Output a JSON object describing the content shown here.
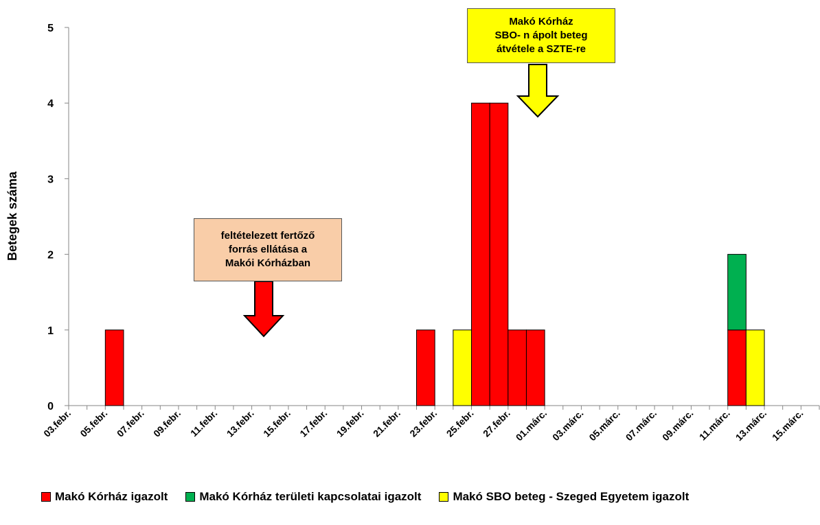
{
  "chart_data": {
    "type": "bar",
    "stacked": true,
    "ylabel": "Betegek száma",
    "xlabel": "",
    "ylim": [
      0,
      5
    ],
    "yticks": [
      0,
      1,
      2,
      3,
      4,
      5
    ],
    "x_tick_labels": [
      "03.febr.",
      "05.febr.",
      "07.febr.",
      "09.febr.",
      "11.febr.",
      "13.febr.",
      "15.febr.",
      "17.febr.",
      "19.febr.",
      "21.febr.",
      "23.febr.",
      "25.febr.",
      "27.febr.",
      "01.márc.",
      "03.márc.",
      "05.márc.",
      "07.márc.",
      "09.márc.",
      "11.márc.",
      "13.márc.",
      "15.márc."
    ],
    "categories": [
      "03.febr.",
      "04.febr.",
      "05.febr.",
      "06.febr.",
      "07.febr.",
      "08.febr.",
      "09.febr.",
      "10.febr.",
      "11.febr.",
      "12.febr.",
      "13.febr.",
      "14.febr.",
      "15.febr.",
      "16.febr.",
      "17.febr.",
      "18.febr.",
      "19.febr.",
      "20.febr.",
      "21.febr.",
      "22.febr.",
      "23.febr.",
      "24.febr.",
      "25.febr.",
      "26.febr.",
      "27.febr.",
      "28.febr.",
      "01.márc.",
      "02.márc.",
      "03.márc.",
      "04.márc.",
      "05.márc.",
      "06.márc.",
      "07.márc.",
      "08.márc.",
      "09.márc.",
      "10.márc.",
      "11.márc.",
      "12.márc.",
      "13.márc.",
      "14.márc.",
      "15.márc."
    ],
    "series": [
      {
        "name": "Makó Kórház igazolt",
        "color": "#ff0000",
        "values": [
          0,
          0,
          1,
          0,
          0,
          0,
          0,
          0,
          0,
          0,
          0,
          0,
          0,
          0,
          0,
          0,
          0,
          0,
          0,
          1,
          0,
          0,
          4,
          4,
          1,
          1,
          0,
          0,
          0,
          0,
          0,
          0,
          0,
          0,
          0,
          0,
          1,
          0,
          0,
          0,
          0
        ]
      },
      {
        "name": "Makó Kórház területi kapcsolatai igazolt",
        "color": "#00b050",
        "values": [
          0,
          0,
          0,
          0,
          0,
          0,
          0,
          0,
          0,
          0,
          0,
          0,
          0,
          0,
          0,
          0,
          0,
          0,
          0,
          0,
          0,
          0,
          0,
          0,
          0,
          0,
          0,
          0,
          0,
          0,
          0,
          0,
          0,
          0,
          0,
          0,
          1,
          0,
          0,
          0,
          0
        ]
      },
      {
        "name": "Makó SBO beteg - Szeged Egyetem igazolt",
        "color": "#ffff00",
        "values": [
          0,
          0,
          0,
          0,
          0,
          0,
          0,
          0,
          0,
          0,
          0,
          0,
          0,
          0,
          0,
          0,
          0,
          0,
          0,
          0,
          0,
          1,
          0,
          0,
          0,
          0,
          0,
          0,
          0,
          0,
          0,
          0,
          0,
          0,
          0,
          0,
          0,
          1,
          0,
          0,
          0
        ]
      }
    ],
    "legend_position": "bottom",
    "grid": false,
    "annotations": [
      {
        "lines": [
          "feltételezett fertőző",
          "forrás ellátása a",
          "Makói Kórházban"
        ],
        "background": "#f9cda8",
        "arrow_color": "#ff0000"
      },
      {
        "lines": [
          "Makó Kórház",
          "SBO- n ápolt beteg",
          "átvétele a SZTE-re"
        ],
        "background": "#ffff00",
        "arrow_color": "#ffff00"
      }
    ]
  }
}
